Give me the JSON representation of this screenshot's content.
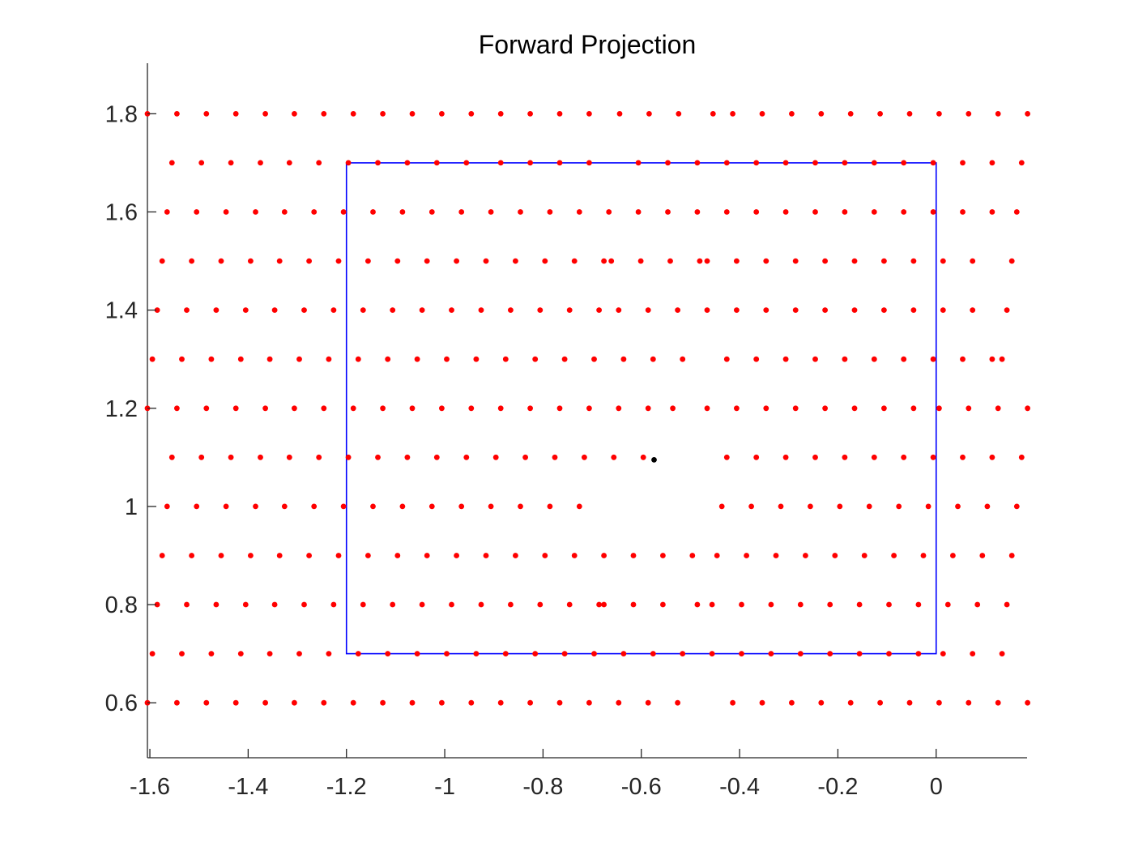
{
  "chart_data": {
    "type": "scatter",
    "title": "Forward Projection",
    "xlabel": "",
    "ylabel": "",
    "xlim": [
      -1.605,
      0.185
    ],
    "ylim": [
      0.488,
      1.903
    ],
    "xticks": [
      -1.6,
      -1.4,
      -1.2,
      -1,
      -0.8,
      -0.6,
      -0.4,
      -0.2,
      0
    ],
    "xtick_labels": [
      "-1.6",
      "-1.4",
      "-1.2",
      "-1",
      "-0.8",
      "-0.6",
      "-0.4",
      "-0.2",
      "0"
    ],
    "yticks": [
      0.6,
      0.8,
      1.0,
      1.2,
      1.4,
      1.6,
      1.8
    ],
    "ytick_labels": [
      "0.6",
      "0.8",
      "1",
      "1.2",
      "1.4",
      "1.6",
      "1.8"
    ],
    "grid": false,
    "colors": {
      "points": "#ff0000",
      "center": "#000000",
      "rectangle": "#0000ff",
      "axis": "#262626"
    },
    "rectangle": {
      "x": [
        -1.2,
        0.0
      ],
      "y": [
        0.7,
        1.7
      ]
    },
    "center_point": {
      "x": -0.574,
      "y": 1.095
    },
    "rows": [
      {
        "y": 1.8,
        "x": [
          -1.605,
          -1.545,
          -1.485,
          -1.425,
          -1.365,
          -1.306,
          -1.246,
          -1.186,
          -1.126,
          -1.066,
          -1.006,
          -0.946,
          -0.886,
          -0.826,
          -0.766,
          -0.706,
          -0.644,
          -0.584,
          -0.524,
          -0.454,
          -0.414,
          -0.354,
          -0.294,
          -0.234,
          -0.174,
          -0.114,
          -0.054,
          0.006,
          0.066,
          0.126,
          0.186
        ]
      },
      {
        "y": 1.7,
        "x": [
          -1.555,
          -1.495,
          -1.435,
          -1.375,
          -1.316,
          -1.256,
          -1.196,
          -1.136,
          -1.076,
          -1.016,
          -0.956,
          -0.886,
          -0.826,
          -0.766,
          -0.706,
          -0.606,
          -0.546,
          -0.486,
          -0.426,
          -0.366,
          -0.306,
          -0.246,
          -0.186,
          -0.126,
          -0.066,
          -0.006,
          0.054,
          0.114,
          0.174
        ]
      },
      {
        "y": 1.6,
        "x": [
          -1.565,
          -1.505,
          -1.445,
          -1.385,
          -1.326,
          -1.266,
          -1.206,
          -1.146,
          -1.086,
          -1.026,
          -0.966,
          -0.906,
          -0.846,
          -0.786,
          -0.726,
          -0.666,
          -0.606,
          -0.546,
          -0.486,
          -0.426,
          -0.366,
          -0.306,
          -0.246,
          -0.186,
          -0.126,
          -0.066,
          -0.006,
          0.054,
          0.114,
          0.164
        ]
      },
      {
        "y": 1.5,
        "x": [
          -1.575,
          -1.515,
          -1.455,
          -1.395,
          -1.336,
          -1.276,
          -1.216,
          -1.156,
          -1.096,
          -1.036,
          -0.976,
          -0.916,
          -0.856,
          -0.796,
          -0.736,
          -0.676,
          -0.661,
          -0.601,
          -0.541,
          -0.481,
          -0.466,
          -0.406,
          -0.346,
          -0.286,
          -0.226,
          -0.166,
          -0.106,
          -0.046,
          0.014,
          0.074,
          0.154
        ]
      },
      {
        "y": 1.4,
        "x": [
          -1.585,
          -1.525,
          -1.465,
          -1.405,
          -1.346,
          -1.286,
          -1.226,
          -1.166,
          -1.106,
          -1.046,
          -0.986,
          -0.926,
          -0.866,
          -0.806,
          -0.746,
          -0.686,
          -0.646,
          -0.586,
          -0.526,
          -0.466,
          -0.406,
          -0.346,
          -0.286,
          -0.226,
          -0.166,
          -0.106,
          -0.046,
          0.014,
          0.074,
          0.144
        ]
      },
      {
        "y": 1.3,
        "x": [
          -1.595,
          -1.535,
          -1.475,
          -1.415,
          -1.356,
          -1.296,
          -1.236,
          -1.176,
          -1.116,
          -1.056,
          -0.996,
          -0.936,
          -0.876,
          -0.816,
          -0.756,
          -0.696,
          -0.636,
          -0.576,
          -0.516,
          -0.426,
          -0.366,
          -0.306,
          -0.246,
          -0.186,
          -0.126,
          -0.066,
          -0.006,
          0.054,
          0.114,
          0.134
        ]
      },
      {
        "y": 1.2,
        "x": [
          -1.605,
          -1.545,
          -1.485,
          -1.425,
          -1.365,
          -1.306,
          -1.246,
          -1.186,
          -1.126,
          -1.066,
          -1.006,
          -0.946,
          -0.886,
          -0.826,
          -0.766,
          -0.706,
          -0.646,
          -0.586,
          -0.536,
          -0.466,
          -0.406,
          -0.346,
          -0.286,
          -0.226,
          -0.166,
          -0.106,
          -0.046,
          0.006,
          0.066,
          0.126,
          0.186
        ]
      },
      {
        "y": 1.1,
        "x": [
          -1.555,
          -1.495,
          -1.435,
          -1.375,
          -1.316,
          -1.256,
          -1.196,
          -1.136,
          -1.076,
          -1.016,
          -0.956,
          -0.896,
          -0.836,
          -0.776,
          -0.716,
          -0.656,
          -0.596,
          -0.426,
          -0.366,
          -0.306,
          -0.246,
          -0.186,
          -0.126,
          -0.066,
          -0.006,
          0.054,
          0.114,
          0.174
        ]
      },
      {
        "y": 1.0,
        "x": [
          -1.565,
          -1.505,
          -1.445,
          -1.385,
          -1.326,
          -1.266,
          -1.206,
          -1.146,
          -1.086,
          -1.026,
          -0.966,
          -0.906,
          -0.846,
          -0.786,
          -0.726,
          -0.436,
          -0.376,
          -0.316,
          -0.256,
          -0.196,
          -0.136,
          -0.076,
          -0.016,
          0.044,
          0.104,
          0.164
        ]
      },
      {
        "y": 0.9,
        "x": [
          -1.575,
          -1.515,
          -1.455,
          -1.395,
          -1.336,
          -1.276,
          -1.216,
          -1.156,
          -1.096,
          -1.036,
          -0.976,
          -0.916,
          -0.856,
          -0.796,
          -0.736,
          -0.676,
          -0.616,
          -0.556,
          -0.496,
          -0.446,
          -0.386,
          -0.326,
          -0.266,
          -0.206,
          -0.146,
          -0.086,
          -0.026,
          0.034,
          0.094,
          0.154
        ]
      },
      {
        "y": 0.8,
        "x": [
          -1.585,
          -1.525,
          -1.465,
          -1.405,
          -1.346,
          -1.286,
          -1.226,
          -1.166,
          -1.106,
          -1.046,
          -0.986,
          -0.926,
          -0.866,
          -0.806,
          -0.746,
          -0.686,
          -0.676,
          -0.616,
          -0.556,
          -0.486,
          -0.456,
          -0.396,
          -0.336,
          -0.276,
          -0.216,
          -0.156,
          -0.096,
          -0.036,
          0.024,
          0.084,
          0.144
        ]
      },
      {
        "y": 0.7,
        "x": [
          -1.595,
          -1.535,
          -1.475,
          -1.415,
          -1.356,
          -1.296,
          -1.236,
          -1.176,
          -1.116,
          -1.056,
          -0.996,
          -0.936,
          -0.876,
          -0.816,
          -0.756,
          -0.696,
          -0.636,
          -0.576,
          -0.516,
          -0.456,
          -0.396,
          -0.336,
          -0.276,
          -0.216,
          -0.156,
          -0.096,
          -0.036,
          0.014,
          0.074,
          0.134
        ]
      },
      {
        "y": 0.6,
        "x": [
          -1.605,
          -1.545,
          -1.485,
          -1.425,
          -1.365,
          -1.306,
          -1.246,
          -1.186,
          -1.126,
          -1.066,
          -1.006,
          -0.946,
          -0.886,
          -0.826,
          -0.766,
          -0.706,
          -0.646,
          -0.586,
          -0.526,
          -0.414,
          -0.354,
          -0.294,
          -0.234,
          -0.174,
          -0.114,
          -0.054,
          0.006,
          0.066,
          0.126,
          0.186
        ]
      }
    ]
  }
}
